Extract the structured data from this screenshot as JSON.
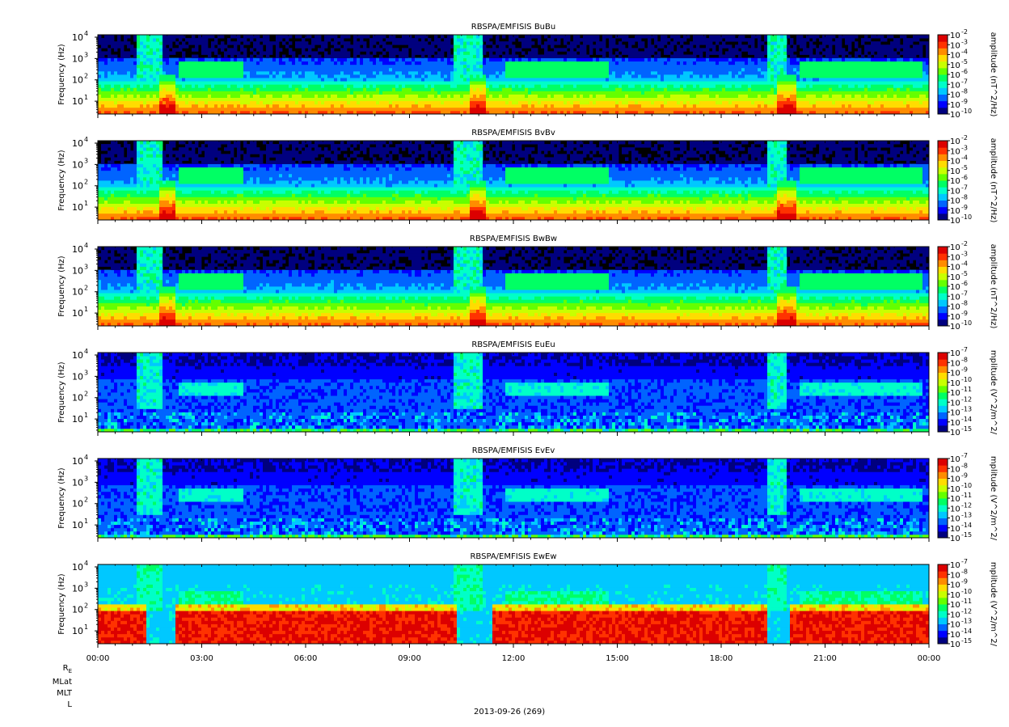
{
  "colorbar_colors": [
    "#00007f",
    "#0000ff",
    "#0064ff",
    "#00c8ff",
    "#00ffc8",
    "#00ff64",
    "#64ff00",
    "#c8ff00",
    "#ffdc00",
    "#ff8c00",
    "#ff3200",
    "#dc0000"
  ],
  "common": {
    "ylabel": "Frequency (Hz)",
    "ytick_base": "10",
    "x_ticks": [
      "00:00",
      "03:00",
      "06:00",
      "09:00",
      "12:00",
      "15:00",
      "18:00",
      "21:00",
      "00:00"
    ]
  },
  "footer": {
    "date": "2013-09-26 (269)",
    "orbit_labels": [
      "R",
      "MLat",
      "MLT",
      "L"
    ],
    "re_subscript": "E"
  },
  "chart_data": [
    {
      "type": "heatmap",
      "title": "RBSPA/EMFISIS  BuBu",
      "ylabel": "Frequency (Hz)",
      "y_scale": "log",
      "ylim": [
        2.5,
        13000
      ],
      "y_tick_exponents": [
        1,
        2,
        3,
        4
      ],
      "xlabel": "",
      "x_ticks": [
        "00:00",
        "03:00",
        "06:00",
        "09:00",
        "12:00",
        "15:00",
        "18:00",
        "21:00",
        "00:00"
      ],
      "colorbar": {
        "label": "amplitude (nT^2/Hz)",
        "scale": "log",
        "tick_exponents": [
          -2,
          -3,
          -4,
          -5,
          -6,
          -7,
          -8,
          -9,
          -10
        ]
      },
      "kind": "B",
      "features": {
        "perigee_hours": [
          2.0,
          11.0,
          19.9
        ],
        "hiss_start": 2.3,
        "hiss_bands": [
          [
            2.3,
            4.2
          ],
          [
            11.8,
            14.8
          ],
          [
            20.3,
            23.8
          ]
        ],
        "bursts": [
          [
            10.3,
            11.1
          ],
          [
            19.3,
            19.9
          ],
          [
            1.1,
            1.9
          ]
        ]
      }
    },
    {
      "type": "heatmap",
      "title": "RBSPA/EMFISIS  BvBv",
      "ylabel": "Frequency (Hz)",
      "y_scale": "log",
      "ylim": [
        2.5,
        13000
      ],
      "y_tick_exponents": [
        1,
        2,
        3,
        4
      ],
      "xlabel": "",
      "x_ticks": [
        "00:00",
        "03:00",
        "06:00",
        "09:00",
        "12:00",
        "15:00",
        "18:00",
        "21:00",
        "00:00"
      ],
      "colorbar": {
        "label": "amplitude (nT^2/Hz)",
        "scale": "log",
        "tick_exponents": [
          -2,
          -3,
          -4,
          -5,
          -6,
          -7,
          -8,
          -9,
          -10
        ]
      },
      "kind": "B",
      "features": {
        "perigee_hours": [
          2.0,
          11.0,
          19.9
        ],
        "hiss_bands": [
          [
            2.3,
            4.2
          ],
          [
            11.8,
            14.8
          ],
          [
            20.3,
            23.8
          ]
        ],
        "bursts": [
          [
            10.3,
            11.1
          ],
          [
            19.3,
            19.9
          ],
          [
            1.1,
            1.9
          ]
        ]
      }
    },
    {
      "type": "heatmap",
      "title": "RBSPA/EMFISIS  BwBw",
      "ylabel": "Frequency (Hz)",
      "y_scale": "log",
      "ylim": [
        2.5,
        13000
      ],
      "y_tick_exponents": [
        1,
        2,
        3,
        4
      ],
      "xlabel": "",
      "x_ticks": [
        "00:00",
        "03:00",
        "06:00",
        "09:00",
        "12:00",
        "15:00",
        "18:00",
        "21:00",
        "00:00"
      ],
      "colorbar": {
        "label": "amplitude (nT^2/Hz)",
        "scale": "log",
        "tick_exponents": [
          -2,
          -3,
          -4,
          -5,
          -6,
          -7,
          -8,
          -9,
          -10
        ]
      },
      "kind": "B",
      "features": {
        "perigee_hours": [
          2.0,
          11.0,
          19.9
        ],
        "hiss_bands": [
          [
            2.3,
            4.2
          ],
          [
            11.8,
            14.8
          ],
          [
            20.3,
            23.8
          ]
        ],
        "bursts": [
          [
            10.3,
            11.1
          ],
          [
            19.3,
            19.9
          ],
          [
            1.1,
            1.9
          ]
        ]
      }
    },
    {
      "type": "heatmap",
      "title": "RBSPA/EMFISIS  EuEu",
      "ylabel": "Frequency (Hz)",
      "y_scale": "log",
      "ylim": [
        2.5,
        13000
      ],
      "y_tick_exponents": [
        1,
        2,
        3,
        4
      ],
      "xlabel": "",
      "x_ticks": [
        "00:00",
        "03:00",
        "06:00",
        "09:00",
        "12:00",
        "15:00",
        "18:00",
        "21:00",
        "00:00"
      ],
      "colorbar": {
        "label": "mplitude (V^2/m^2/",
        "scale": "log",
        "tick_exponents": [
          -7,
          -8,
          -9,
          -10,
          -11,
          -12,
          -13,
          -14,
          -15
        ]
      },
      "kind": "E",
      "features": {
        "perigee_hours": [
          2.0,
          11.0,
          19.9
        ],
        "hiss_bands": [
          [
            2.3,
            4.2
          ],
          [
            11.8,
            14.8
          ],
          [
            20.3,
            23.8
          ]
        ],
        "bursts": [
          [
            10.3,
            11.1
          ],
          [
            19.3,
            19.9
          ],
          [
            1.1,
            1.9
          ]
        ]
      }
    },
    {
      "type": "heatmap",
      "title": "RBSPA/EMFISIS  EvEv",
      "ylabel": "Frequency (Hz)",
      "y_scale": "log",
      "ylim": [
        2.5,
        13000
      ],
      "y_tick_exponents": [
        1,
        2,
        3,
        4
      ],
      "xlabel": "",
      "x_ticks": [
        "00:00",
        "03:00",
        "06:00",
        "09:00",
        "12:00",
        "15:00",
        "18:00",
        "21:00",
        "00:00"
      ],
      "colorbar": {
        "label": "mplitude (V^2/m^2/",
        "scale": "log",
        "tick_exponents": [
          -7,
          -8,
          -9,
          -10,
          -11,
          -12,
          -13,
          -14,
          -15
        ]
      },
      "kind": "E",
      "features": {
        "perigee_hours": [
          2.0,
          11.0,
          19.9
        ],
        "hiss_bands": [
          [
            2.3,
            4.2
          ],
          [
            11.8,
            14.8
          ],
          [
            20.3,
            23.8
          ]
        ],
        "bursts": [
          [
            10.3,
            11.1
          ],
          [
            19.3,
            19.9
          ],
          [
            1.1,
            1.9
          ]
        ]
      }
    },
    {
      "type": "heatmap",
      "title": "RBSPA/EMFISIS  EwEw",
      "ylabel": "Frequency (Hz)",
      "y_scale": "log",
      "ylim": [
        2.5,
        13000
      ],
      "y_tick_exponents": [
        1,
        2,
        3,
        4
      ],
      "xlabel": "",
      "x_ticks": [
        "00:00",
        "03:00",
        "06:00",
        "09:00",
        "12:00",
        "15:00",
        "18:00",
        "21:00",
        "00:00"
      ],
      "colorbar": {
        "label": "mplitude (V^2/m^2/",
        "scale": "log",
        "tick_exponents": [
          -7,
          -8,
          -9,
          -10,
          -11,
          -12,
          -13,
          -14,
          -15
        ]
      },
      "kind": "Ew",
      "features": {
        "perigee_hours": [
          2.0,
          11.0,
          19.9
        ],
        "hiss_bands": [
          [
            2.3,
            4.2
          ],
          [
            11.8,
            14.8
          ],
          [
            20.3,
            23.8
          ]
        ],
        "bursts": [
          [
            10.3,
            11.1
          ],
          [
            19.3,
            19.9
          ],
          [
            1.1,
            1.9
          ]
        ],
        "low_gaps": [
          [
            1.4,
            2.2
          ],
          [
            10.4,
            11.4
          ],
          [
            19.3,
            20.0
          ]
        ]
      }
    }
  ]
}
